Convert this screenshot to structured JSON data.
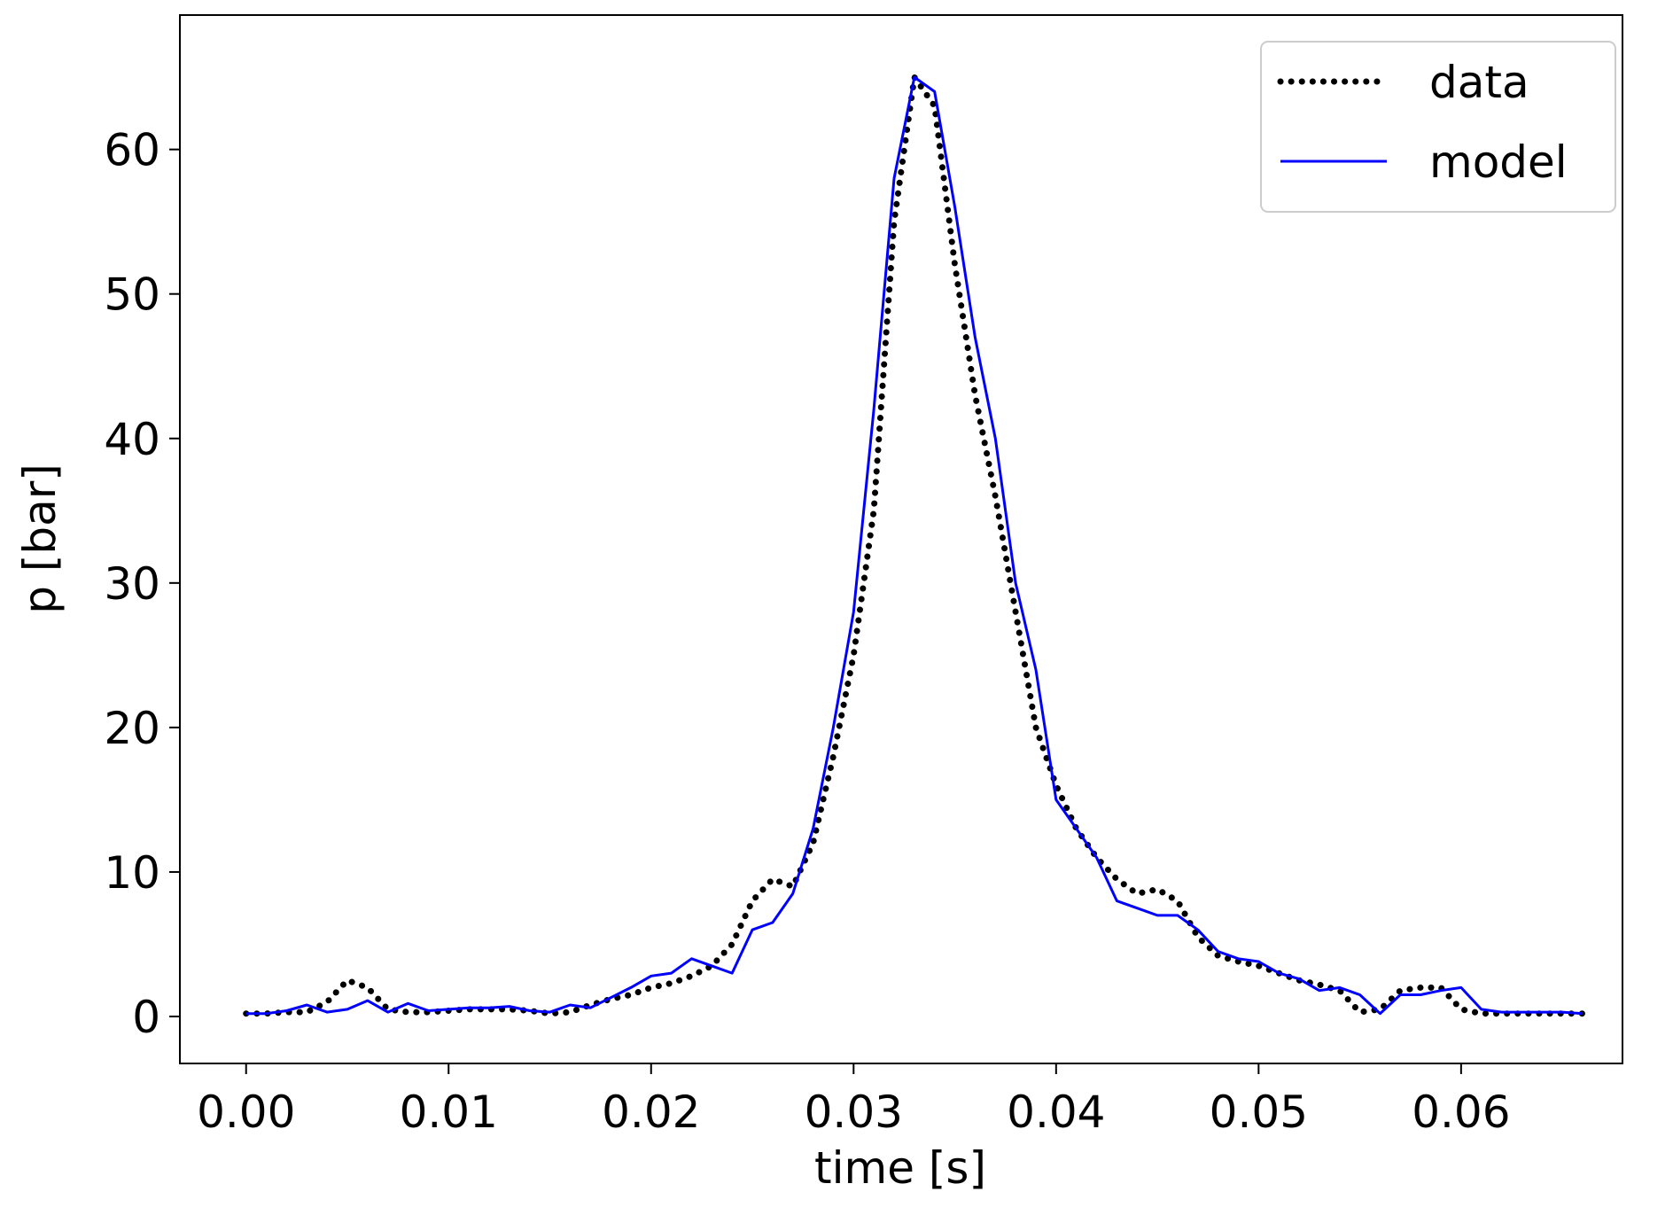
{
  "chart_data": {
    "type": "line",
    "xlabel": "time [s]",
    "ylabel": "p [bar]",
    "x": [
      0,
      0.001,
      0.002,
      0.003,
      0.004,
      0.005,
      0.006,
      0.007,
      0.008,
      0.009,
      0.01,
      0.011,
      0.012,
      0.013,
      0.014,
      0.015,
      0.016,
      0.017,
      0.018,
      0.019,
      0.02,
      0.021,
      0.022,
      0.023,
      0.024,
      0.025,
      0.026,
      0.027,
      0.028,
      0.029,
      0.03,
      0.031,
      0.032,
      0.033,
      0.034,
      0.035,
      0.036,
      0.037,
      0.038,
      0.039,
      0.04,
      0.041,
      0.042,
      0.043,
      0.044,
      0.045,
      0.046,
      0.047,
      0.048,
      0.049,
      0.05,
      0.051,
      0.052,
      0.053,
      0.054,
      0.055,
      0.056,
      0.057,
      0.058,
      0.059,
      0.06,
      0.061,
      0.062,
      0.063,
      0.064,
      0.065,
      0.066
    ],
    "series": [
      {
        "name": "data",
        "color": "#000000",
        "style": "dotted",
        "values": [
          0.2,
          0.2,
          0.3,
          0.3,
          1.0,
          2.5,
          2.0,
          0.5,
          0.3,
          0.3,
          0.4,
          0.5,
          0.5,
          0.5,
          0.4,
          0.2,
          0.3,
          0.8,
          1.2,
          1.5,
          2.0,
          2.3,
          2.8,
          3.5,
          5.0,
          8.0,
          9.5,
          9.0,
          12,
          18,
          25,
          35,
          55,
          65,
          63,
          52,
          43,
          36,
          28,
          20,
          16,
          13,
          11,
          9.5,
          8.5,
          8.8,
          8.0,
          5.5,
          4.2,
          3.8,
          3.5,
          3.0,
          2.5,
          2.2,
          1.8,
          0.3,
          0.5,
          1.8,
          2.0,
          2.0,
          0.5,
          0.2,
          0.2,
          0.2,
          0.2,
          0.2,
          0.2
        ]
      },
      {
        "name": "model",
        "color": "#0000ff",
        "style": "solid",
        "values": [
          0.2,
          0.2,
          0.4,
          0.8,
          0.3,
          0.5,
          1.1,
          0.3,
          0.9,
          0.4,
          0.5,
          0.6,
          0.6,
          0.7,
          0.4,
          0.3,
          0.8,
          0.6,
          1.3,
          2.0,
          2.8,
          3.0,
          4.0,
          3.5,
          3.0,
          6.0,
          6.5,
          8.5,
          13,
          20,
          28,
          42,
          58,
          65,
          64,
          56,
          47,
          40,
          30,
          24,
          15,
          13,
          11,
          8.0,
          7.5,
          7.0,
          7.0,
          6.0,
          4.5,
          4.0,
          3.8,
          3.0,
          2.6,
          1.8,
          2.0,
          1.5,
          0.2,
          1.5,
          1.5,
          1.8,
          2.0,
          0.5,
          0.3,
          0.3,
          0.3,
          0.3,
          0.2
        ]
      }
    ],
    "xlim": [
      -0.00327,
      0.06797
    ],
    "xticks": [
      {
        "value": 0,
        "label": "0.00"
      },
      0.01,
      0.02,
      0.03,
      0.04,
      0.05,
      0.06
    ],
    "ylim": [
      -3.25,
      69.3
    ],
    "yticks": [
      0,
      10,
      20,
      30,
      40,
      50,
      60
    ],
    "legend": "upper right"
  }
}
